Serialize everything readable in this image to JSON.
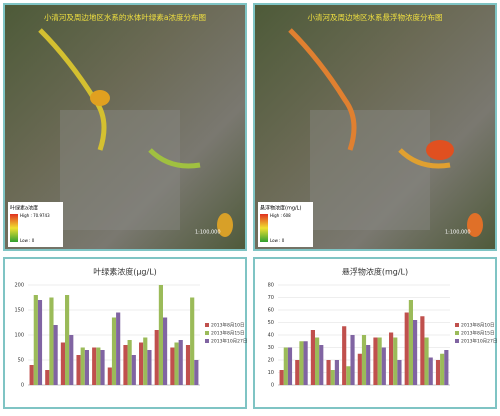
{
  "maps": [
    {
      "title": "小清河及周边地区水系的水体叶绿素a浓度分布图",
      "legend_title": "叶绿素a浓度",
      "high": "High : 70.9743",
      "low": "Low : 0",
      "scale": "1:100,000"
    },
    {
      "title": "小清河及周边地区水系悬浮物浓度分布图",
      "legend_title": "悬浮物浓度(mg/L)",
      "high": "High : 608",
      "low": "Low : 0",
      "scale": "1:100,000"
    }
  ],
  "chart_data": [
    {
      "type": "bar",
      "title": "叶绿素浓度(μg/L)",
      "categories": [
        null,
        null,
        null,
        null,
        null,
        null,
        null,
        null,
        null,
        null,
        null
      ],
      "series": [
        {
          "name": "2013年8月10日",
          "color": "#c0504d",
          "values": [
            40,
            30,
            85,
            60,
            75,
            35,
            80,
            85,
            110,
            75,
            80
          ]
        },
        {
          "name": "2013年8月15日",
          "color": "#9bbb59",
          "values": [
            180,
            175,
            180,
            75,
            75,
            135,
            90,
            95,
            200,
            85,
            175
          ]
        },
        {
          "name": "2013年10月27日",
          "color": "#8064a2",
          "values": [
            170,
            120,
            100,
            70,
            70,
            145,
            60,
            70,
            135,
            90,
            50
          ]
        }
      ],
      "ylim": [
        0,
        200
      ],
      "yticks": [
        0,
        50,
        100,
        150,
        200
      ],
      "grid": true
    },
    {
      "type": "bar",
      "title": "悬浮物浓度(mg/L)",
      "categories": [
        null,
        null,
        null,
        null,
        null,
        null,
        null,
        null,
        null,
        null,
        null
      ],
      "series": [
        {
          "name": "2013年8月10日",
          "color": "#c0504d",
          "values": [
            12,
            20,
            44,
            20,
            47,
            25,
            38,
            42,
            58,
            55,
            20
          ]
        },
        {
          "name": "2013年8月15日",
          "color": "#9bbb59",
          "values": [
            30,
            35,
            38,
            12,
            15,
            40,
            38,
            38,
            68,
            38,
            25
          ]
        },
        {
          "name": "2013年10月27日",
          "color": "#8064a2",
          "values": [
            30,
            35,
            32,
            20,
            40,
            32,
            30,
            20,
            52,
            22,
            28
          ]
        }
      ],
      "ylim": [
        0,
        80
      ],
      "yticks": [
        0,
        10,
        20,
        30,
        40,
        50,
        60,
        70,
        80
      ],
      "grid": true
    }
  ]
}
